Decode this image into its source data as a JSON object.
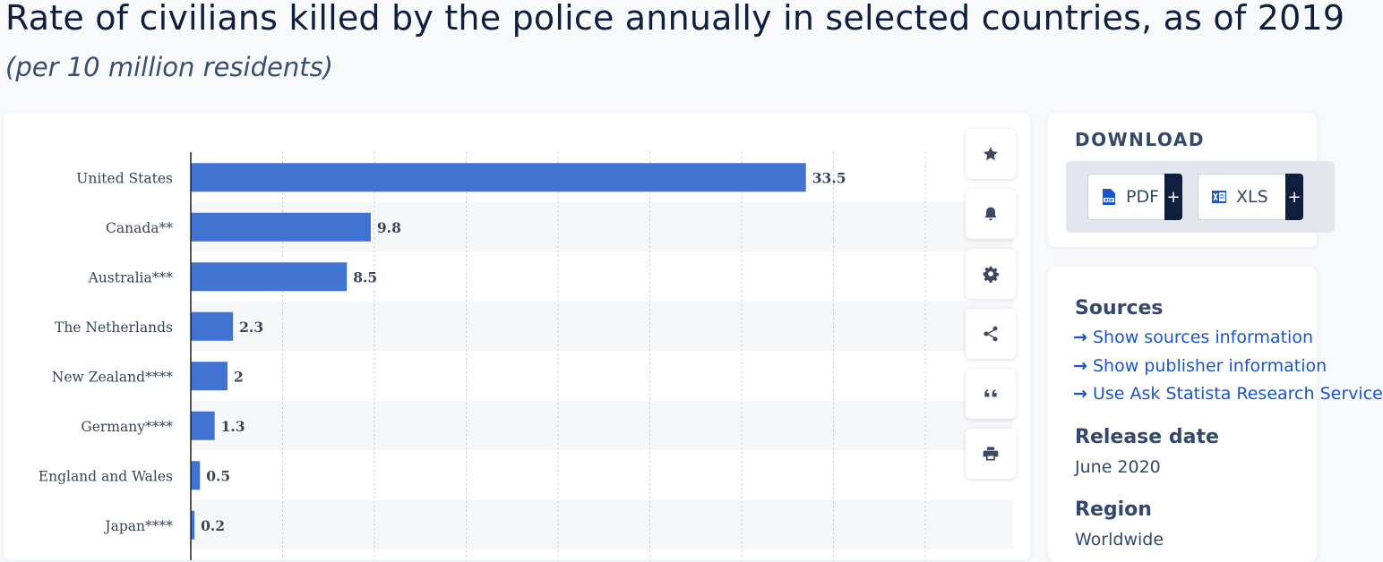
{
  "header": {
    "title": "Rate of civilians killed by the police annually in selected countries, as of 2019",
    "subtitle": "(per 10 million residents)"
  },
  "chart_data": {
    "type": "bar",
    "orientation": "horizontal",
    "categories": [
      "United States",
      "Canada**",
      "Australia***",
      "The Netherlands",
      "New Zealand****",
      "Germany****",
      "England and Wales",
      "Japan****"
    ],
    "values": [
      33.5,
      9.8,
      8.5,
      2.3,
      2,
      1.3,
      0.5,
      0.2
    ],
    "value_labels": [
      "33.5",
      "9.8",
      "8.5",
      "2.3",
      "2",
      "1.3",
      "0.5",
      "0.2"
    ],
    "xlim": [
      0,
      40
    ],
    "grid": true,
    "bar_color": "#4174d2"
  },
  "toolbar": {
    "icons": [
      "star-icon",
      "bell-icon",
      "gear-icon",
      "share-icon",
      "quote-icon",
      "print-icon"
    ]
  },
  "download": {
    "title": "DOWNLOAD",
    "pdf_label": "PDF",
    "xls_label": "XLS",
    "plus": "+"
  },
  "info": {
    "sources_heading": "Sources",
    "links": [
      "Show sources information",
      "Show publisher information",
      "Use Ask Statista Research Service"
    ],
    "release_heading": "Release date",
    "release_value": "June 2020",
    "region_heading": "Region",
    "region_value": "Worldwide"
  },
  "colors": {
    "accent": "#4174d2",
    "link": "#1a55c9",
    "dark": "#0f1f3d"
  }
}
